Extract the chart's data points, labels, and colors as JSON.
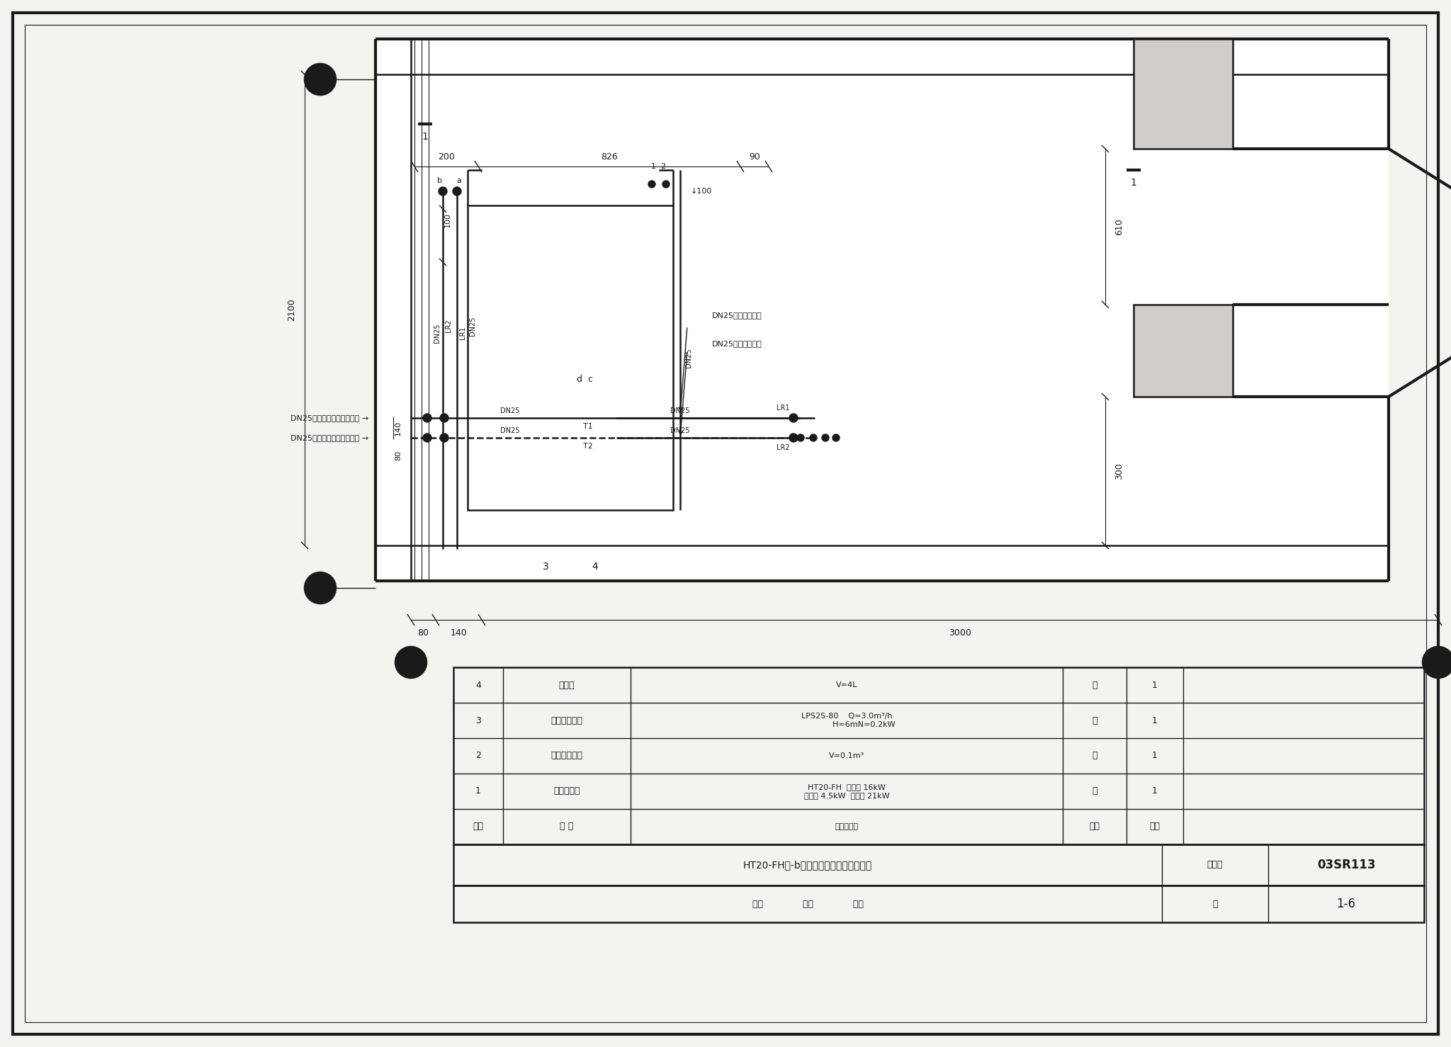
{
  "bg_color": "#f5f3f0",
  "line_color": "#1a1a1a",
  "title_text": "HT20-FH（-b）冷热源设备及管道平面图",
  "atlas_label": "图集号",
  "atlas_number": "03SR113",
  "page_label": "页",
  "page_number": "1-6",
  "dn25_supply": "DN25接末端供水管",
  "dn25_return": "DN25接末端回水管",
  "dn25_sys_supply": "DN25接能量提升系统供水管",
  "dn25_sys_return": "DN25接能量提升系统回水管"
}
